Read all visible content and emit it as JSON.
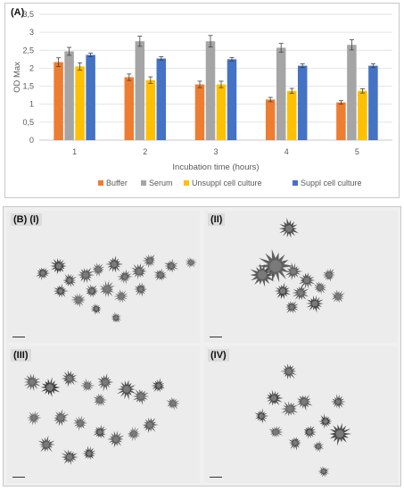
{
  "panel_a_label": "(A)",
  "chart_data": {
    "type": "bar",
    "categories": [
      "1",
      "2",
      "3",
      "4",
      "5"
    ],
    "xlabel": "Incubation time (hours)",
    "ylabel": "OD Max",
    "ylim": [
      0,
      3.5
    ],
    "yticks": [
      "0",
      "0,5",
      "1",
      "1,5",
      "2",
      "2,5",
      "3",
      "3,5"
    ],
    "grid": true,
    "legend_position": "bottom",
    "series": [
      {
        "name": "Buffer",
        "color": "#ed7d31",
        "values": [
          2.17,
          1.75,
          1.55,
          1.13,
          1.05
        ],
        "errors": [
          0.12,
          0.09,
          0.09,
          0.06,
          0.05
        ]
      },
      {
        "name": "Serum",
        "color": "#a5a5a5",
        "values": [
          2.47,
          2.75,
          2.75,
          2.57,
          2.65
        ],
        "errors": [
          0.11,
          0.14,
          0.16,
          0.12,
          0.14
        ]
      },
      {
        "name": "Unsuppl cell culture",
        "color": "#ffc000",
        "values": [
          2.05,
          1.67,
          1.55,
          1.37,
          1.37
        ],
        "errors": [
          0.1,
          0.09,
          0.09,
          0.07,
          0.06
        ]
      },
      {
        "name": "Suppl cell culture",
        "color": "#4472c4",
        "values": [
          2.37,
          2.27,
          2.25,
          2.07,
          2.07
        ],
        "errors": [
          0.05,
          0.05,
          0.05,
          0.05,
          0.05
        ]
      }
    ]
  },
  "panel_b": {
    "label": "(B) (I)",
    "panels": [
      {
        "label": "(B) (I)"
      },
      {
        "label": "(II)"
      },
      {
        "label": "(III)"
      },
      {
        "label": "(IV)"
      }
    ]
  }
}
